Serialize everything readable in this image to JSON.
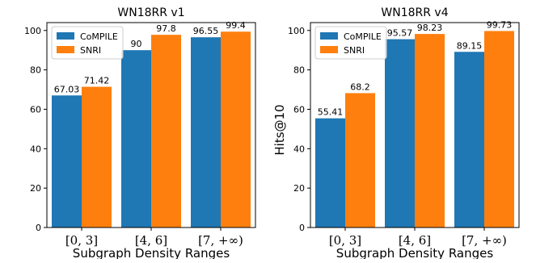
{
  "chart_data": [
    {
      "type": "bar",
      "title": "WN18RR v1",
      "xlabel": "Subgraph Density Ranges",
      "ylabel": "",
      "categories": [
        "[0, 3]",
        "[4, 6]",
        "[7, +∞)"
      ],
      "ylim": [
        0,
        104
      ],
      "yticks": [
        0,
        20,
        40,
        60,
        80,
        100
      ],
      "series": [
        {
          "name": "CoMPILE",
          "color": "#1f77b4",
          "values": [
            67.03,
            90,
            96.55
          ],
          "labels": [
            "67.03",
            "90",
            "96.55"
          ]
        },
        {
          "name": "SNRI",
          "color": "#ff7f0e",
          "values": [
            71.42,
            97.8,
            99.4
          ],
          "labels": [
            "71.42",
            "97.8",
            "99.4"
          ]
        }
      ],
      "legend": "top-left",
      "grid": false
    },
    {
      "type": "bar",
      "title": "WN18RR v4",
      "xlabel": "Subgraph Density Ranges",
      "ylabel": "Hits@10",
      "categories": [
        "[0, 3]",
        "[4, 6]",
        "[7, +∞)"
      ],
      "ylim": [
        0,
        104
      ],
      "yticks": [
        0,
        20,
        40,
        60,
        80,
        100
      ],
      "series": [
        {
          "name": "CoMPILE",
          "color": "#1f77b4",
          "values": [
            55.41,
            95.57,
            89.15
          ],
          "labels": [
            "55.41",
            "95.57",
            "89.15"
          ]
        },
        {
          "name": "SNRI",
          "color": "#ff7f0e",
          "values": [
            68.2,
            98.23,
            99.73
          ],
          "labels": [
            "68.2",
            "98.23",
            "99.73"
          ]
        }
      ],
      "legend": "top-left",
      "grid": false
    }
  ]
}
